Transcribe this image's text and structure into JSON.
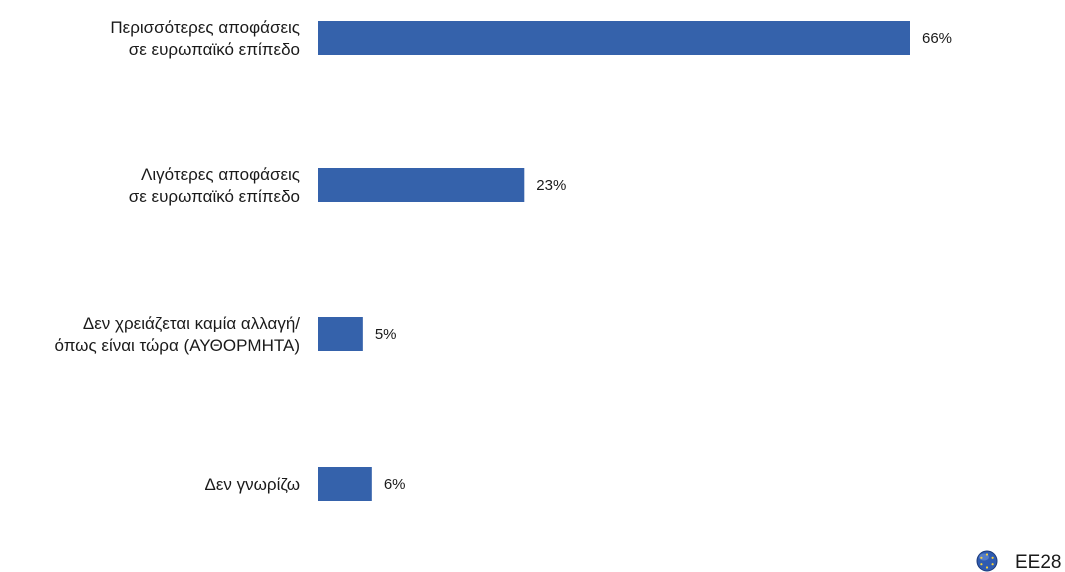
{
  "chart_data": {
    "type": "bar",
    "orientation": "horizontal",
    "categories": [
      [
        "Περισσότερες αποφάσεις",
        "σε ευρωπαϊκό επίπεδο"
      ],
      [
        "Λιγότερες αποφάσεις",
        "σε ευρωπαϊκό επίπεδο"
      ],
      [
        "Δεν χρειάζεται καμία αλλαγή/",
        "όπως είναι τώρα (ΑΥΘΟΡΜΗΤΑ)"
      ],
      [
        "Δεν γνωρίζω"
      ]
    ],
    "series": [
      {
        "name": "EE28",
        "values": [
          66,
          23,
          5,
          6
        ],
        "color": "#3562ab"
      }
    ],
    "value_labels": [
      "66%",
      "23%",
      "5%",
      "6%"
    ],
    "xlim": [
      0,
      66
    ],
    "grid": false,
    "legend": {
      "position": "bottom-right",
      "label": "EE28",
      "icon": "eu-flag-globe-icon"
    }
  }
}
